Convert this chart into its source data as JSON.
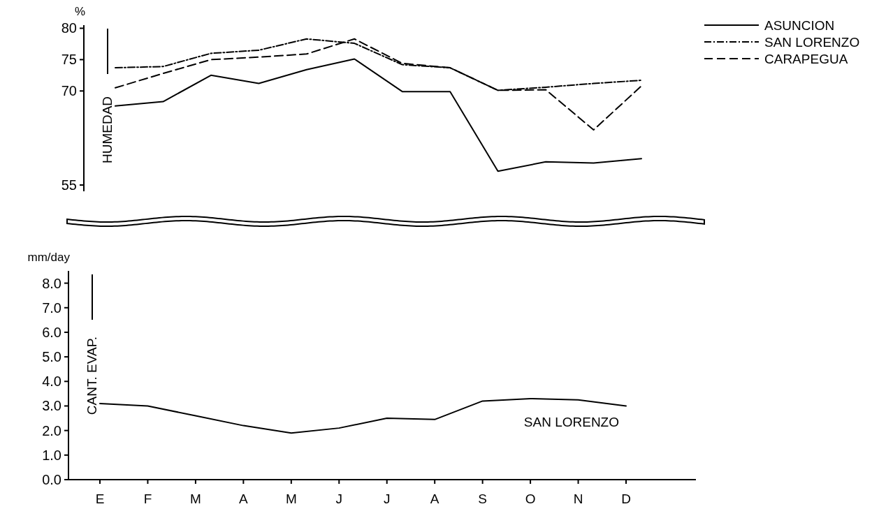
{
  "chart_data": [
    {
      "type": "line",
      "ylabel": "HUMEDAD",
      "annotations": [
        "%"
      ],
      "categories": [
        null,
        null,
        null,
        null,
        null,
        null,
        null,
        null,
        null,
        null,
        null,
        null
      ],
      "ylim": [
        54,
        80.5
      ],
      "yticks": [
        80,
        75,
        70,
        55
      ],
      "tick_labels": "y",
      "legend": "top right",
      "grid": false,
      "series": [
        {
          "name": "ASUNCION",
          "color": "#000000",
          "line_style": "solid",
          "values": [
            67.6,
            68.3,
            72.5,
            71.2,
            73.4,
            75.1,
            69.9,
            69.9,
            57.2,
            58.7,
            58.5,
            59.2
          ]
        },
        {
          "name": "SAN LORENZO",
          "color": "#000000",
          "line_style": "dashdot",
          "values": [
            73.7,
            73.9,
            76.0,
            76.5,
            78.3,
            77.6,
            74.2,
            73.7,
            70.1,
            70.6,
            71.2,
            71.7
          ]
        },
        {
          "name": "CARAPEGUA",
          "color": "#000000",
          "line_style": "dashed",
          "values": [
            70.5,
            72.8,
            75.0,
            75.4,
            75.9,
            78.3,
            74.4,
            73.7,
            70.1,
            70.2,
            63.8,
            70.8
          ]
        }
      ]
    },
    {
      "type": "line",
      "ylabel": "CANT. EVAP.",
      "annotations": [
        "mm/day"
      ],
      "categories": [
        "E",
        "F",
        "M",
        "A",
        "M",
        "J",
        "J",
        "A",
        "S",
        "O",
        "N",
        "D"
      ],
      "ylim": [
        0,
        8.5
      ],
      "yticks": [
        {
          "value": 0,
          "label": "0.0"
        },
        {
          "value": 1,
          "label": "1.0"
        },
        {
          "value": 2,
          "label": "2.0"
        },
        {
          "value": 3,
          "label": "3.0"
        },
        {
          "value": 4,
          "label": "4.0"
        },
        {
          "value": 5,
          "label": "5.0"
        },
        {
          "value": 6,
          "label": "6.0"
        },
        {
          "value": 7,
          "label": "7.0"
        },
        {
          "value": 8,
          "label": "8.0"
        }
      ],
      "legend": false,
      "grid": false,
      "series": [
        {
          "name": "SAN LORENZO",
          "color": "#000000",
          "line_style": "solid",
          "values": [
            3.1,
            3.0,
            2.6,
            2.2,
            1.9,
            2.1,
            2.5,
            2.45,
            3.2,
            3.3,
            3.25,
            3.0
          ]
        }
      ]
    }
  ]
}
